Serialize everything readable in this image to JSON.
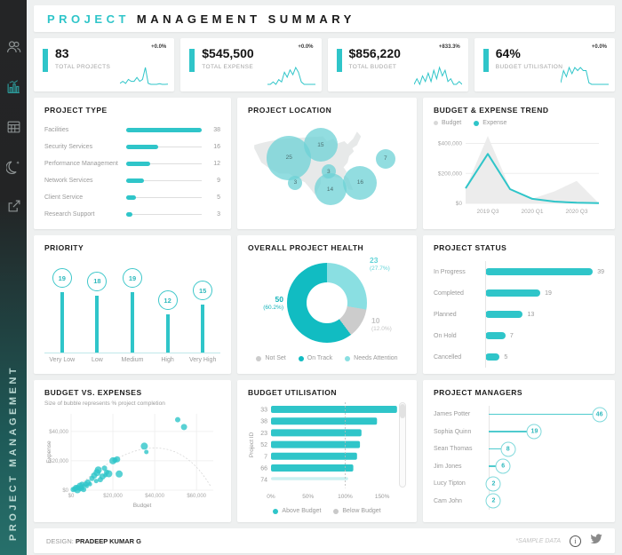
{
  "colors": {
    "accent": "#2fc5c9",
    "teal_dark": "#11bcc2",
    "teal_light": "#8adfe2",
    "gray_slice": "#cccccc",
    "area_gray": "#ececec"
  },
  "header": {
    "title_accent": "PROJECT",
    "title_rest": "MANAGEMENT  SUMMARY"
  },
  "sidebar": {
    "vertical_label": "PROJECT MANAGEMENT"
  },
  "kpis": [
    {
      "value": "83",
      "label": "TOTAL PROJECTS",
      "delta": "+0.0%",
      "spark": [
        2,
        3,
        2,
        4,
        3,
        3,
        5,
        3,
        4,
        10,
        2,
        1.5,
        1.5,
        1.5,
        1.8,
        1.5,
        1.5,
        1.6
      ]
    },
    {
      "value": "$545,500",
      "label": "TOTAL EXPENSE",
      "delta": "+0.0%",
      "spark": [
        1,
        1,
        2,
        1,
        3,
        2,
        6,
        4,
        7,
        5,
        8,
        6,
        2,
        1,
        1,
        1,
        1,
        1
      ]
    },
    {
      "value": "$856,220",
      "label": "TOTAL BUDGET",
      "delta": "+833.3%",
      "spark": [
        2,
        4,
        2,
        5,
        3,
        6,
        3,
        7,
        4,
        8,
        5,
        7,
        3,
        4,
        2,
        2,
        3,
        2
      ]
    },
    {
      "value": "64%",
      "label": "BUDGET UTILISATION",
      "delta": "+0.0%",
      "spark": [
        2,
        6,
        4,
        7,
        5,
        7,
        6,
        7,
        6,
        6,
        2,
        1.5,
        1.5,
        1.5,
        1.5,
        1.5,
        1.5,
        1.5
      ]
    }
  ],
  "panels": {
    "project_type": {
      "title": "PROJECT TYPE"
    },
    "project_location": {
      "title": "PROJECT LOCATION"
    },
    "budget_expense_trend": {
      "title": "BUDGET & EXPENSE TREND"
    },
    "priority": {
      "title": "PRIORITY"
    },
    "project_health": {
      "title": "OVERALL PROJECT HEALTH"
    },
    "project_status": {
      "title": "PROJECT STATUS"
    },
    "budget_vs_expenses": {
      "title": "BUDGET VS. EXPENSES",
      "subtitle": "Size of bubble represents % project completion"
    },
    "budget_utilisation": {
      "title": "BUDGET UTILISATION"
    },
    "project_managers": {
      "title": "PROJECT MANAGERS"
    }
  },
  "chart_data": [
    {
      "id": "project_type",
      "type": "bar",
      "categories": [
        "Facilities",
        "Security Services",
        "Performance Management",
        "Network Services",
        "Client Service",
        "Research Support"
      ],
      "values": [
        38,
        16,
        12,
        9,
        5,
        3
      ]
    },
    {
      "id": "project_location",
      "type": "bubble-map",
      "points": [
        {
          "value": 25,
          "x": 26,
          "y": 38,
          "r": 25
        },
        {
          "value": 15,
          "x": 46,
          "y": 25,
          "r": 19
        },
        {
          "value": 7,
          "x": 87,
          "y": 39,
          "r": 11
        },
        {
          "value": 3,
          "x": 51,
          "y": 52,
          "r": 8
        },
        {
          "value": 3,
          "x": 30,
          "y": 63,
          "r": 8
        },
        {
          "value": 14,
          "x": 52,
          "y": 70,
          "r": 18
        },
        {
          "value": 16,
          "x": 71,
          "y": 63,
          "r": 19
        }
      ]
    },
    {
      "id": "budget_expense_trend",
      "type": "area",
      "x": [
        "2019 Q2",
        "2019 Q3",
        "2019 Q4",
        "2020 Q1",
        "2020 Q2",
        "2020 Q3",
        "2020 Q4"
      ],
      "series": [
        {
          "name": "Budget",
          "values": [
            100000,
            450000,
            100000,
            30000,
            80000,
            150000,
            0
          ]
        },
        {
          "name": "Expense",
          "values": [
            100000,
            330000,
            95000,
            30000,
            12000,
            4000,
            1000
          ]
        }
      ],
      "ylim": [
        0,
        480000
      ],
      "yticks": [
        0,
        200000,
        400000
      ],
      "ytick_labels": [
        "$0",
        "$200,000",
        "$400,000"
      ],
      "xtick_idx": [
        1,
        3,
        5
      ],
      "xtick_labels": [
        "2019 Q3",
        "2020 Q1",
        "2020 Q3"
      ]
    },
    {
      "id": "priority",
      "type": "lollipop",
      "categories": [
        "Very Low",
        "Low",
        "Medium",
        "High",
        "Very High"
      ],
      "values": [
        19,
        18,
        19,
        12,
        15
      ]
    },
    {
      "id": "project_health",
      "type": "donut",
      "slices": [
        {
          "label": "Needs Attention",
          "value": 23,
          "pct": "(27.7%)",
          "color": "#8adfe2"
        },
        {
          "label": "Not Set",
          "value": 10,
          "pct": "(12.0%)",
          "color": "#cccccc"
        },
        {
          "label": "On Track",
          "value": 50,
          "pct": "(60.2%)",
          "color": "#11bcc2"
        }
      ],
      "legend_order": [
        "Not Set",
        "On Track",
        "Needs Attention"
      ]
    },
    {
      "id": "project_status",
      "type": "bar",
      "categories": [
        "In Progress",
        "Completed",
        "Planned",
        "On Hold",
        "Cancelled"
      ],
      "values": [
        39,
        19,
        13,
        7,
        5
      ]
    },
    {
      "id": "budget_vs_expenses",
      "type": "scatter",
      "xlabel": "Budget",
      "ylabel": "Expense",
      "xlim": [
        0,
        68000
      ],
      "ylim": [
        0,
        52000
      ],
      "xticks": [
        0,
        20000,
        40000,
        60000
      ],
      "xtick_labels": [
        "$0",
        "$20,000",
        "$40,000",
        "$60,000"
      ],
      "yticks": [
        0,
        20000,
        40000
      ],
      "ytick_labels": [
        "$0",
        "$20,000",
        "$40,000"
      ],
      "trend": {
        "p0": [
          2000,
          1000
        ],
        "c": [
          45000,
          56000
        ],
        "p1": [
          67000,
          2000
        ]
      },
      "points": [
        [
          1000,
          400,
          3
        ],
        [
          1500,
          900,
          2.5
        ],
        [
          2000,
          300,
          2
        ],
        [
          2200,
          1800,
          3
        ],
        [
          2600,
          900,
          2
        ],
        [
          3000,
          300,
          4
        ],
        [
          3000,
          2100,
          2.5
        ],
        [
          3500,
          1500,
          3
        ],
        [
          4000,
          900,
          2
        ],
        [
          4200,
          3000,
          3.5
        ],
        [
          4600,
          500,
          2
        ],
        [
          5000,
          2000,
          2.5
        ],
        [
          5200,
          4000,
          3
        ],
        [
          5600,
          1100,
          2
        ],
        [
          6000,
          400,
          3
        ],
        [
          6200,
          3100,
          2
        ],
        [
          7000,
          4200,
          3
        ],
        [
          7600,
          2600,
          2
        ],
        [
          8000,
          5200,
          3.5
        ],
        [
          9000,
          4100,
          2.5
        ],
        [
          10000,
          8000,
          3
        ],
        [
          11000,
          10000,
          3.5
        ],
        [
          12000,
          6200,
          2.5
        ],
        [
          12400,
          12000,
          4
        ],
        [
          13000,
          13800,
          4
        ],
        [
          14000,
          7200,
          3
        ],
        [
          15000,
          9300,
          3.5
        ],
        [
          16000,
          15000,
          3
        ],
        [
          16400,
          10200,
          2.5
        ],
        [
          17000,
          12200,
          3
        ],
        [
          18000,
          11200,
          4
        ],
        [
          20000,
          20000,
          4
        ],
        [
          21000,
          20500,
          3
        ],
        [
          22000,
          21000,
          3.5
        ],
        [
          23000,
          11000,
          4
        ],
        [
          35000,
          30000,
          4
        ],
        [
          36000,
          26000,
          2.5
        ],
        [
          51000,
          48000,
          3
        ],
        [
          54000,
          43000,
          3.5
        ]
      ]
    },
    {
      "id": "budget_utilisation",
      "type": "bar",
      "ylabel": "Project ID",
      "categories": [
        "33",
        "38",
        "23",
        "52",
        "7",
        "66",
        "74"
      ],
      "values": [
        170,
        143,
        122,
        120,
        116,
        111,
        104
      ],
      "xlim": [
        0,
        175
      ],
      "xticks": [
        0,
        50,
        100,
        150
      ],
      "xtick_labels": [
        "0%",
        "50%",
        "100%",
        "150%"
      ],
      "reference_line": 100,
      "legend": [
        {
          "label": "Above Budget",
          "color": "#2fc5c9"
        },
        {
          "label": "Below Budget",
          "color": "#c9c9c9"
        }
      ]
    },
    {
      "id": "project_managers",
      "type": "lollipop",
      "categories": [
        "James Potter",
        "Sophia Quinn",
        "Sean Thomas",
        "Jim Jones",
        "Lucy Tipton",
        "Cam John"
      ],
      "values": [
        46,
        19,
        8,
        6,
        2,
        2
      ]
    }
  ],
  "footer": {
    "design_label": "DESIGN:",
    "designer": "PRADEEP KUMAR G",
    "sample_note": "*SAMPLE DATA"
  }
}
